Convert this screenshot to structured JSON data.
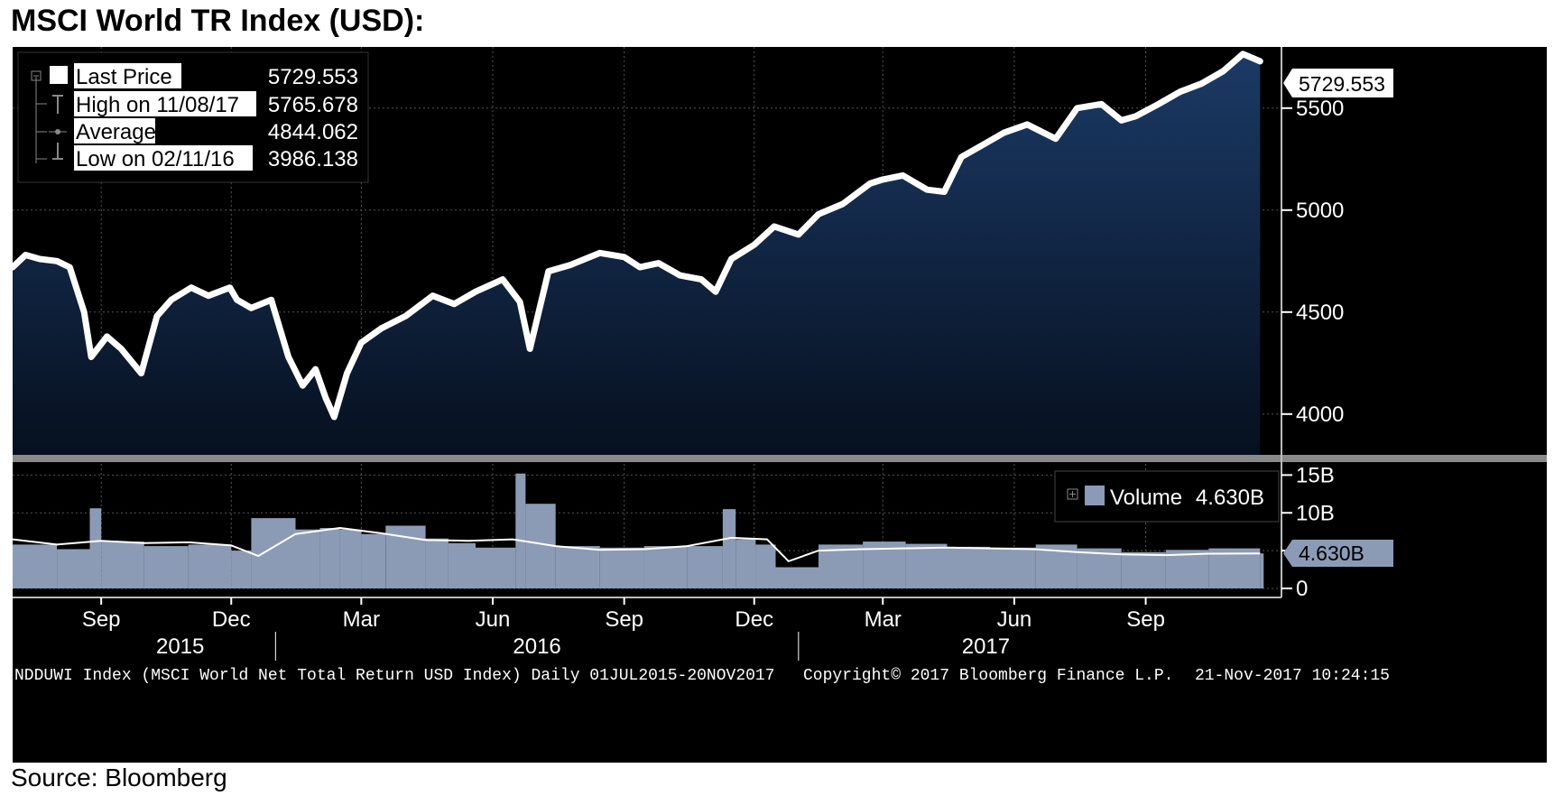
{
  "page": {
    "title": "MSCI World TR Index (USD):",
    "source": "Source: Bloomberg"
  },
  "legend": {
    "rows": [
      {
        "icon": "square-icon",
        "label": "Last Price",
        "value": "5729.553"
      },
      {
        "icon": "high-marker-icon",
        "label": "High on 11/08/17",
        "value": "5765.678"
      },
      {
        "icon": "average-marker-icon",
        "label": "Average",
        "value": "4844.062"
      },
      {
        "icon": "low-marker-icon",
        "label": "Low on 02/11/16",
        "value": "3986.138"
      }
    ]
  },
  "volume_legend": {
    "label": "Volume",
    "value": "4.630B"
  },
  "price_tag": "5729.553",
  "volume_tag": "4.630B",
  "footer": {
    "left": "NDDUWI Index (MSCI World Net Total Return USD Index) Daily 01JUL2015-20NOV2017",
    "middle": "Copyright© 2017 Bloomberg Finance L.P.",
    "right": "21-Nov-2017 10:24:15"
  },
  "colors": {
    "background": "#000000",
    "price_line": "#ffffff",
    "area_top": "#1b3a66",
    "area_bottom": "#06101f",
    "volume_bars": "#8c9bb5",
    "volume_avg": "#ffffff",
    "grid": "#555555",
    "tag_bg": "#ffffff",
    "volume_tag_bg": "#8c9bb5"
  },
  "chart_data": [
    {
      "type": "line",
      "series": [
        {
          "name": "Last Price",
          "x": [
            "2015-07-01",
            "2015-07-10",
            "2015-07-20",
            "2015-08-01",
            "2015-08-10",
            "2015-08-20",
            "2015-08-25",
            "2015-09-05",
            "2015-09-15",
            "2015-09-29",
            "2015-10-10",
            "2015-10-20",
            "2015-11-03",
            "2015-11-15",
            "2015-11-30",
            "2015-12-05",
            "2015-12-15",
            "2015-12-29",
            "2016-01-10",
            "2016-01-20",
            "2016-01-29",
            "2016-02-05",
            "2016-02-11",
            "2016-02-20",
            "2016-03-01",
            "2016-03-15",
            "2016-04-01",
            "2016-04-20",
            "2016-05-05",
            "2016-05-20",
            "2016-06-08",
            "2016-06-20",
            "2016-06-27",
            "2016-07-10",
            "2016-07-25",
            "2016-08-15",
            "2016-09-01",
            "2016-09-12",
            "2016-09-25",
            "2016-10-10",
            "2016-10-25",
            "2016-11-04",
            "2016-11-15",
            "2016-12-01",
            "2016-12-15",
            "2017-01-01",
            "2017-01-15",
            "2017-02-01",
            "2017-02-20",
            "2017-03-01",
            "2017-03-15",
            "2017-04-01",
            "2017-04-13",
            "2017-04-25",
            "2017-05-10",
            "2017-05-25",
            "2017-06-10",
            "2017-06-30",
            "2017-07-15",
            "2017-08-01",
            "2017-08-15",
            "2017-08-25",
            "2017-09-10",
            "2017-09-25",
            "2017-10-10",
            "2017-10-25",
            "2017-11-08",
            "2017-11-20"
          ],
          "values": [
            4720,
            4780,
            4760,
            4750,
            4720,
            4500,
            4280,
            4380,
            4320,
            4200,
            4480,
            4560,
            4620,
            4580,
            4620,
            4560,
            4520,
            4560,
            4280,
            4140,
            4220,
            4080,
            3986,
            4200,
            4350,
            4420,
            4480,
            4580,
            4540,
            4600,
            4660,
            4550,
            4320,
            4700,
            4730,
            4790,
            4770,
            4720,
            4740,
            4680,
            4660,
            4600,
            4760,
            4830,
            4920,
            4880,
            4980,
            5030,
            5130,
            5150,
            5170,
            5100,
            5090,
            5260,
            5320,
            5380,
            5420,
            5350,
            5500,
            5520,
            5440,
            5460,
            5520,
            5580,
            5620,
            5680,
            5765.678,
            5729.553
          ]
        }
      ],
      "ylim": [
        3800,
        5800
      ],
      "yticks": [
        4000,
        4500,
        5000,
        5500
      ],
      "xlim": [
        "2015-07-01",
        "2017-12-05"
      ],
      "x_tick_labels": [
        "Sep",
        "Dec",
        "Mar",
        "Jun",
        "Sep",
        "Dec",
        "Mar",
        "Jun",
        "Sep"
      ],
      "x_tick_dates": [
        "2015-09-01",
        "2015-12-01",
        "2016-03-01",
        "2016-06-01",
        "2016-09-01",
        "2016-12-01",
        "2017-03-01",
        "2017-06-01",
        "2017-09-01"
      ],
      "year_labels": [
        "2015",
        "2016",
        "2017"
      ],
      "grid": true,
      "legend_position": "top-left"
    },
    {
      "type": "bar",
      "series": [
        {
          "name": "Volume",
          "x": [
            "2015-07-01",
            "2015-08-01",
            "2015-08-24",
            "2015-09-01",
            "2015-10-01",
            "2015-11-01",
            "2015-12-01",
            "2015-12-15",
            "2016-01-15",
            "2016-02-01",
            "2016-02-15",
            "2016-03-01",
            "2016-03-18",
            "2016-04-15",
            "2016-05-01",
            "2016-05-20",
            "2016-06-17",
            "2016-06-24",
            "2016-07-15",
            "2016-08-15",
            "2016-09-15",
            "2016-10-15",
            "2016-11-09",
            "2016-11-18",
            "2016-12-02",
            "2016-12-16",
            "2017-01-15",
            "2017-02-15",
            "2017-03-17",
            "2017-04-15",
            "2017-05-15",
            "2017-06-16",
            "2017-07-15",
            "2017-08-15",
            "2017-09-15",
            "2017-10-15",
            "2017-11-20"
          ],
          "values": [
            5.8,
            5.2,
            10.6,
            6.2,
            5.6,
            5.8,
            5.0,
            9.3,
            7.8,
            8.0,
            7.8,
            7.2,
            8.3,
            6.6,
            6.0,
            5.4,
            15.2,
            11.2,
            5.6,
            5.4,
            5.6,
            5.6,
            10.5,
            6.5,
            5.8,
            2.8,
            5.8,
            6.2,
            5.9,
            5.5,
            5.4,
            5.8,
            5.3,
            4.8,
            5.1,
            5.3,
            4.63
          ]
        },
        {
          "name": "Average",
          "x": [
            "2015-07-01",
            "2015-08-01",
            "2015-09-01",
            "2015-10-01",
            "2015-11-01",
            "2015-12-01",
            "2015-12-20",
            "2016-01-15",
            "2016-02-15",
            "2016-03-15",
            "2016-04-15",
            "2016-05-15",
            "2016-06-15",
            "2016-07-15",
            "2016-08-15",
            "2016-09-15",
            "2016-10-15",
            "2016-11-15",
            "2016-12-10",
            "2016-12-25",
            "2017-01-15",
            "2017-02-15",
            "2017-03-15",
            "2017-04-15",
            "2017-05-15",
            "2017-06-15",
            "2017-07-15",
            "2017-08-15",
            "2017-09-15",
            "2017-10-15",
            "2017-11-20"
          ],
          "values": [
            6.5,
            5.8,
            6.3,
            6.0,
            6.1,
            5.7,
            4.3,
            7.2,
            8.0,
            7.3,
            6.4,
            6.3,
            6.5,
            5.6,
            5.1,
            5.2,
            5.6,
            6.7,
            6.5,
            3.6,
            5.0,
            5.2,
            5.3,
            5.4,
            5.3,
            5.2,
            4.8,
            4.5,
            4.4,
            4.6,
            4.63
          ]
        }
      ],
      "ylim": [
        0,
        16
      ],
      "yticks": [
        0,
        5,
        10,
        15
      ],
      "ytick_labels": [
        "0",
        "",
        "10B",
        "15B"
      ],
      "legend_position": "top-right"
    }
  ]
}
